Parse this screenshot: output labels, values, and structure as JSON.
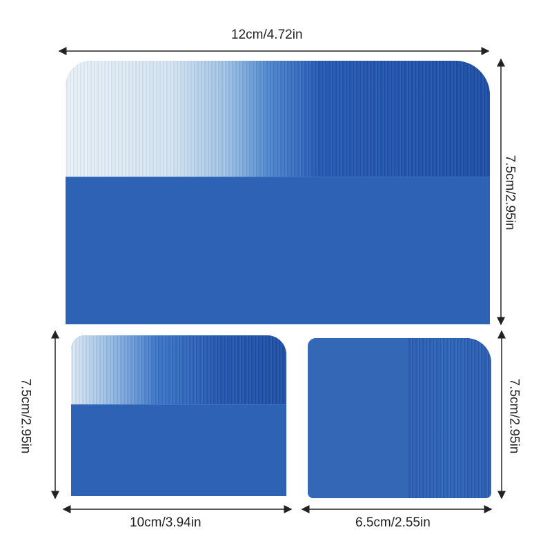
{
  "dimensions": {
    "large_width": "12cm/4.72in",
    "large_height": "7.5cm/2.95in",
    "medium_height": "7.5cm/2.95in",
    "medium_width": "10cm/3.94in",
    "small_height": "7.5cm/2.95in",
    "small_width": "6.5cm/2.55in"
  },
  "colors": {
    "blue": "#2d62b4",
    "dark_blue": "#1f4ea3",
    "light": "#e6f0f8"
  }
}
